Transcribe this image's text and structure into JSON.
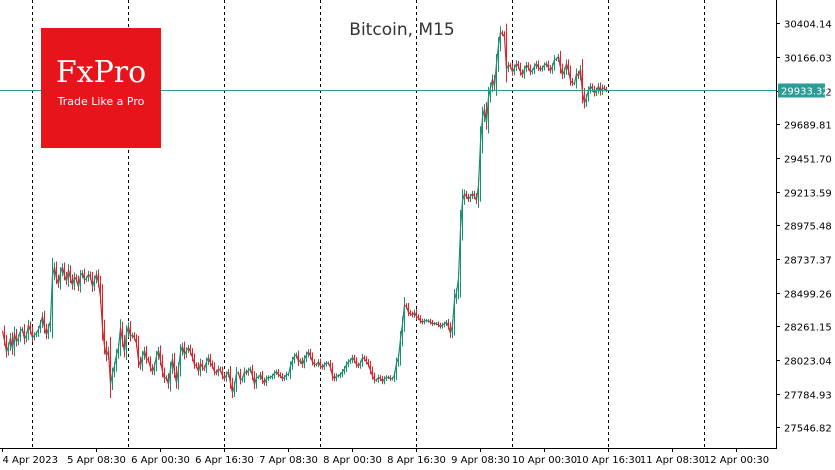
{
  "chart_data": {
    "type": "line",
    "title": "Bitcoin, M15",
    "current_price_label": "29933.32",
    "xlabel": "",
    "ylabel": "",
    "ylim": [
      27400,
      30570
    ],
    "y_ticks": [
      "30404.14",
      "30166.03",
      "29927.92",
      "29689.81",
      "29451.70",
      "29213.59",
      "28975.48",
      "28737.37",
      "28499.26",
      "28261.15",
      "28023.04",
      "27784.93",
      "27546.82"
    ],
    "x_ticks": [
      "4 Apr 2023",
      "5 Apr 08:30",
      "6 Apr 00:30",
      "6 Apr 16:30",
      "7 Apr 08:30",
      "8 Apr 00:30",
      "8 Apr 16:30",
      "9 Apr 08:30",
      "10 Apr 00:30",
      "10 Apr 16:30",
      "11 Apr 08:30",
      "12 Apr 00:30"
    ],
    "x_tick_index": [
      0,
      47,
      79,
      111,
      143,
      175,
      207,
      239,
      271,
      303,
      335,
      367
    ],
    "day_separators": [
      15,
      63,
      111,
      159,
      207,
      255,
      303,
      351
    ],
    "current_price": 29933.32,
    "series": [
      {
        "values": [
          28230,
          28160,
          28080,
          28120,
          28180,
          28100,
          28210,
          28150,
          28180,
          28230,
          28240,
          28170,
          28200,
          28270,
          28230,
          28180,
          28200,
          28210,
          28240,
          28280,
          28330,
          28250,
          28200,
          28250,
          28300,
          28620,
          28680,
          28600,
          28560,
          28640,
          28680,
          28620,
          28580,
          28660,
          28600,
          28550,
          28610,
          28590,
          28540,
          28620,
          28640,
          28590,
          28600,
          28630,
          28610,
          28540,
          28590,
          28630,
          28570,
          28470,
          28250,
          28120,
          28050,
          28090,
          27850,
          27930,
          27980,
          28060,
          28110,
          28250,
          28160,
          28080,
          28210,
          28260,
          28190,
          28200,
          28180,
          28140,
          28020,
          27980,
          28050,
          28090,
          28030,
          28020,
          27970,
          27940,
          27980,
          28050,
          28090,
          28020,
          27940,
          27890,
          27900,
          27850,
          27960,
          28030,
          27940,
          27860,
          27960,
          28080,
          28120,
          28060,
          28090,
          28110,
          28080,
          28040,
          27990,
          27980,
          27940,
          28000,
          27970,
          27960,
          28010,
          28040,
          28000,
          27980,
          27940,
          27930,
          27960,
          27950,
          27910,
          27890,
          27920,
          27940,
          27860,
          27790,
          27840,
          27930,
          27930,
          27880,
          27890,
          27940,
          27930,
          27950,
          27960,
          27910,
          27850,
          27900,
          27900,
          27920,
          27880,
          27860,
          27890,
          27900,
          27900,
          27910,
          27930,
          27940,
          27920,
          27910,
          27890,
          27900,
          27920,
          27920,
          27980,
          28020,
          28050,
          28060,
          28010,
          28020,
          27990,
          28030,
          28060,
          28080,
          28050,
          28010,
          27990,
          27990,
          28010,
          27980,
          27970,
          27990,
          28000,
          28000,
          27970,
          27910,
          27890,
          27910,
          27910,
          27920,
          27940,
          27960,
          27990,
          28010,
          28020,
          28040,
          28020,
          27990,
          27980,
          28000,
          28040,
          28030,
          28010,
          27990,
          27950,
          27910,
          27880,
          27880,
          27900,
          27890,
          27870,
          27890,
          27900,
          27900,
          27890,
          27890,
          27920,
          28000,
          28040,
          28170,
          28280,
          28410,
          28400,
          28360,
          28350,
          28340,
          28360,
          28330,
          28320,
          28300,
          28290,
          28300,
          28300,
          28300,
          28290,
          28280,
          28280,
          28280,
          28270,
          28260,
          28270,
          28280,
          28290,
          28260,
          28210,
          28270,
          28450,
          28500,
          28600,
          28950,
          29150,
          29200,
          29180,
          29160,
          29180,
          29200,
          29180,
          29150,
          29260,
          29560,
          29740,
          29800,
          29700,
          29880,
          29950,
          30010,
          29960,
          30120,
          30250,
          30340,
          30330,
          30310,
          30080,
          30110,
          30100,
          30060,
          30090,
          30120,
          30100,
          30060,
          30040,
          30080,
          30110,
          30090,
          30060,
          30070,
          30100,
          30120,
          30090,
          30080,
          30090,
          30110,
          30120,
          30090,
          30070,
          30100,
          30150,
          30150,
          30170,
          30090,
          30040,
          30070,
          30120,
          30070,
          30000,
          29980,
          29980,
          30050,
          30030,
          30080,
          29910,
          29840,
          29880,
          29930,
          29960,
          29940,
          29910,
          29930,
          29960,
          29920,
          29950,
          29940,
          29933
        ]
      }
    ]
  }
}
